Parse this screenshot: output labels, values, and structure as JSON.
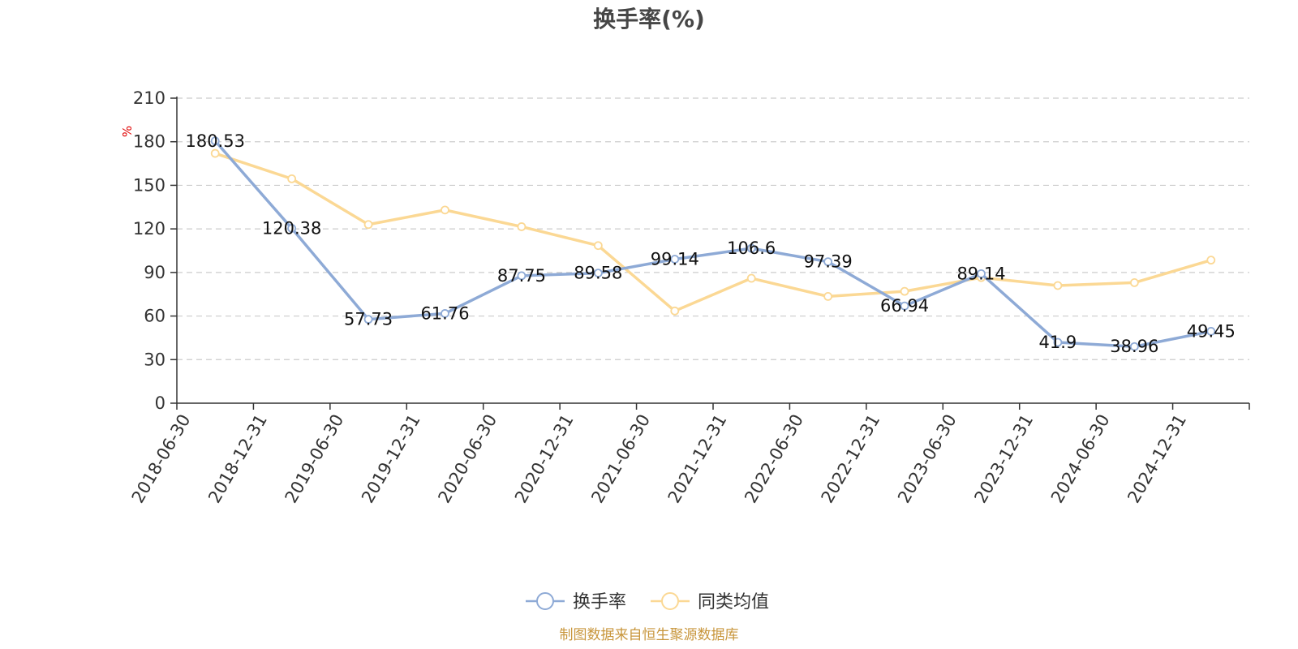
{
  "chart_data": {
    "type": "line",
    "title": "换手率(%)",
    "ylabel": "%",
    "ylim": [
      0,
      210
    ],
    "yticks": [
      0,
      30,
      60,
      90,
      120,
      150,
      180,
      210
    ],
    "categories": [
      "2018-06-30",
      "2018-12-31",
      "2019-06-30",
      "2019-12-31",
      "2020-06-30",
      "2020-12-31",
      "2021-06-30",
      "2021-12-31",
      "2022-06-30",
      "2022-12-31",
      "2023-06-30",
      "2023-12-31",
      "2024-06-30",
      "2024-12-31"
    ],
    "grid": true,
    "legend_position": "bottom",
    "series": [
      {
        "name": "换手率",
        "color": "#8eaad6",
        "show_labels": true,
        "values": [
          180.53,
          120.38,
          57.73,
          61.76,
          87.75,
          89.58,
          99.14,
          106.6,
          97.39,
          66.94,
          89.14,
          41.9,
          38.96,
          49.45
        ],
        "labels": [
          "180.53",
          "120.38",
          "57.73",
          "61.76",
          "87.75",
          "89.58",
          "99.14",
          "106.6",
          "97.39",
          "66.94",
          "89.14",
          "41.9",
          "38.96",
          "49.45"
        ]
      },
      {
        "name": "同类均值",
        "color": "#fbd894",
        "show_labels": false,
        "values": [
          172,
          154.5,
          123,
          133,
          121.5,
          108.5,
          63.5,
          86,
          73.5,
          77,
          86.5,
          81,
          83,
          98.5
        ]
      }
    ],
    "source_note": "制图数据来自恒生聚源数据库"
  }
}
